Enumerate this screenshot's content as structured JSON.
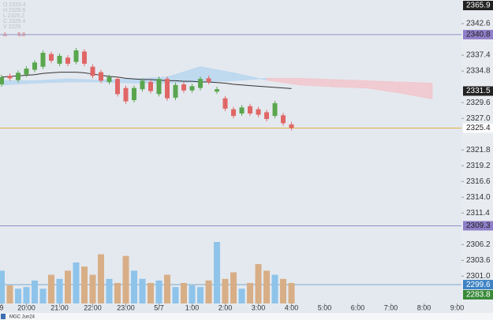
{
  "chart_data": {
    "type": "candlestick",
    "symbol": "MGC Jun24",
    "ohlc_legend": [
      "O 2325.4",
      "H 2326.6",
      "L 2325.2",
      "C 2325.4",
      "V 2229"
    ],
    "delta_legend": [
      "Δ",
      "-5.8"
    ],
    "ylim": [
      2296.5,
      2346.5
    ],
    "xlim": [
      -0.19,
      55.52
    ],
    "yticks": [
      2342.6,
      2337.4,
      2334.8,
      2329.6,
      {
        "value": 2327.0,
        "label": "2327.0"
      },
      2321.8,
      2319.2,
      2316.6,
      {
        "value": 2314.0,
        "label": "2314.0"
      },
      2311.4,
      2306.2,
      2303.6,
      {
        "value": 2301.0,
        "label": "2301.0"
      }
    ],
    "xticks": [
      {
        "value": 0,
        "label": "9"
      },
      {
        "value": 3,
        "label": "20:00"
      },
      {
        "value": 7,
        "label": "21:00"
      },
      {
        "value": 11,
        "label": "22:00"
      },
      {
        "value": 15,
        "label": "23:00"
      },
      {
        "value": 19,
        "label": "5/7"
      },
      {
        "value": 23,
        "label": "1:00"
      },
      {
        "value": 27,
        "label": "2:00"
      },
      {
        "value": 31,
        "label": "3:00"
      },
      {
        "value": 35,
        "label": "4:00"
      },
      {
        "value": 39,
        "label": "5:00"
      },
      {
        "value": 43,
        "label": "6:00"
      },
      {
        "value": 47,
        "label": "7:00"
      },
      {
        "value": 51,
        "label": "8:00"
      },
      {
        "value": 55,
        "label": "9:00"
      }
    ],
    "up_color": "#5aa64e",
    "down_color": "#e06666",
    "volume_up_color": "#8ec3ea",
    "volume_down_color": "#d8ae86",
    "open": [
      2332.6,
      2334.0,
      2333.3,
      2334.2,
      2335.0,
      2335.5,
      2337.6,
      2336.0,
      2337.0,
      2336.3,
      2338.0,
      2335.5,
      2334.6,
      2333.0,
      2333.5,
      2332.0,
      2330.0,
      2331.8,
      2333.0,
      2331.0,
      2333.5,
      2330.4,
      2332.6,
      2331.6,
      2332.0,
      2333.6,
      2331.4,
      2330.3,
      2328.5,
      2327.8,
      2329.0,
      2328.5,
      2328.0,
      2327.4,
      2327.5,
      2326.0
    ],
    "high": [
      2334.2,
      2334.4,
      2334.9,
      2335.6,
      2336.6,
      2338.2,
      2338.0,
      2337.7,
      2337.4,
      2338.6,
      2338.4,
      2335.9,
      2335.0,
      2334.2,
      2333.9,
      2332.4,
      2332.4,
      2333.6,
      2333.4,
      2333.9,
      2333.9,
      2332.9,
      2333.0,
      2332.7,
      2333.9,
      2334.0,
      2332.2,
      2330.7,
      2328.9,
      2329.2,
      2329.4,
      2328.9,
      2328.4,
      2329.9,
      2327.9,
      2326.4
    ],
    "low": [
      2332.2,
      2333.2,
      2332.9,
      2333.8,
      2334.6,
      2335.1,
      2336.1,
      2335.6,
      2335.6,
      2335.9,
      2335.6,
      2333.6,
      2332.8,
      2332.6,
      2330.6,
      2329.4,
      2329.6,
      2331.4,
      2331.1,
      2330.6,
      2329.9,
      2330.0,
      2331.2,
      2331.2,
      2331.6,
      2332.6,
      2331.0,
      2328.2,
      2327.0,
      2327.4,
      2327.4,
      2327.2,
      2326.5,
      2327.0,
      2325.8,
      2325.0
    ],
    "close": [
      2333.8,
      2333.6,
      2334.5,
      2335.2,
      2336.2,
      2337.8,
      2336.5,
      2337.3,
      2336.0,
      2338.2,
      2336.0,
      2334.0,
      2333.2,
      2333.8,
      2331.0,
      2329.8,
      2332.0,
      2333.2,
      2331.5,
      2333.5,
      2330.3,
      2332.5,
      2331.6,
      2332.3,
      2333.5,
      2333.0,
      2331.8,
      2328.6,
      2327.4,
      2328.8,
      2327.8,
      2327.6,
      2326.9,
      2329.5,
      2326.2,
      2325.4
    ],
    "volume": [
      40,
      22,
      18,
      20,
      28,
      18,
      35,
      30,
      40,
      50,
      45,
      35,
      60,
      30,
      25,
      58,
      40,
      30,
      25,
      28,
      35,
      20,
      25,
      22,
      20,
      28,
      75,
      30,
      38,
      18,
      25,
      48,
      40,
      35,
      30,
      25
    ],
    "moving_average": {
      "color": "#333333",
      "values": [
        2333.8,
        2333.9,
        2334.0,
        2334.1,
        2334.2,
        2334.4,
        2334.5,
        2334.6,
        2334.6,
        2334.6,
        2334.5,
        2334.3,
        2334.1,
        2333.9,
        2333.8,
        2333.6,
        2333.5,
        2333.4,
        2333.4,
        2333.3,
        2333.2,
        2333.2,
        2333.1,
        2333.1,
        2333.0,
        2333.0,
        2332.9,
        2332.8,
        2332.6,
        2332.5,
        2332.4,
        2332.3,
        2332.2,
        2332.1,
        2332.0,
        2331.9
      ]
    },
    "cloud": {
      "x": [
        0,
        4,
        8,
        12,
        16,
        20,
        24,
        28,
        32,
        36,
        40,
        44,
        48,
        52
      ],
      "span_a": [
        2333.2,
        2333.2,
        2333.5,
        2333.3,
        2333.5,
        2333.8,
        2335.5,
        2334.5,
        2333.3,
        2332.5,
        2332.2,
        2332.0,
        2331.2,
        2330.2
      ],
      "span_b": [
        2332.5,
        2332.8,
        2333.0,
        2333.0,
        2332.8,
        2332.8,
        2333.0,
        2333.2,
        2333.6,
        2333.6,
        2333.4,
        2333.2,
        2333.0,
        2332.8
      ],
      "up_color": "#b9d6ef",
      "down_color": "#f2c6cc"
    },
    "price_tags": [
      {
        "value": 2340.8,
        "bg": "#8f7fc9",
        "fg": "#222",
        "line": "#8f8fc9"
      },
      {
        "value": 2331.5,
        "bg": "#222222",
        "fg": "#fff"
      },
      {
        "value": 2325.4,
        "bg": "#ffffff",
        "fg": "#222",
        "line": "#e0b040"
      },
      {
        "value": 2309.3,
        "bg": "#8f7fc9",
        "fg": "#222",
        "line": "#8f8fc9"
      },
      {
        "value": 2299.6,
        "bg": "#3d82c4",
        "fg": "#fff",
        "line": "#7aa6cc"
      }
    ],
    "pinned_tags": [
      {
        "text": "2365.9",
        "pin": "top",
        "bg": "#222222",
        "fg": "#fff"
      },
      {
        "text": "2283.8",
        "pin": "bottom",
        "bg": "#3a8a3a",
        "fg": "#fff"
      }
    ]
  }
}
